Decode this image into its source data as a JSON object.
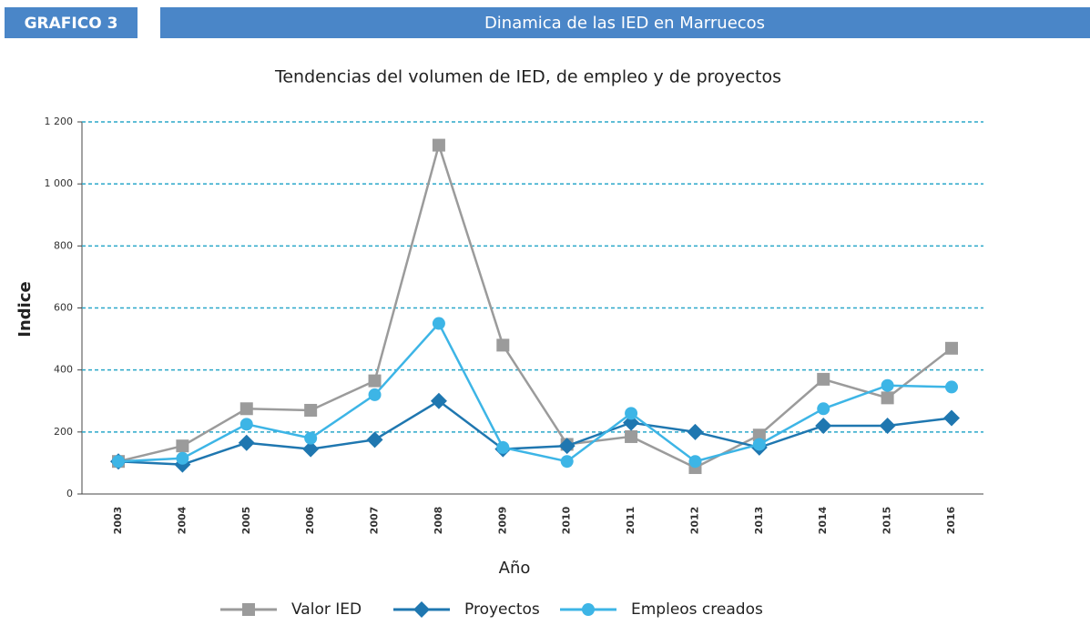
{
  "header": {
    "label": "GRAFICO 3",
    "title": "Dinamica de las IED en Marruecos"
  },
  "chart_data": {
    "type": "line",
    "title": "Tendencias del volumen de IED, de empleo y de proyectos",
    "xlabel": "Año",
    "ylabel": "Indice",
    "categories": [
      "2003",
      "2004",
      "2005",
      "2006",
      "2007",
      "2008",
      "2009",
      "2010",
      "2011",
      "2012",
      "2013",
      "2014",
      "2015",
      "2016"
    ],
    "series": [
      {
        "name": "Valor IED",
        "color": "#9b9b9b",
        "marker": "square",
        "values": [
          105,
          155,
          275,
          270,
          365,
          1125,
          480,
          160,
          185,
          85,
          190,
          370,
          310,
          470
        ]
      },
      {
        "name": "Proyectos",
        "color": "#1f77b0",
        "marker": "diamond",
        "values": [
          105,
          95,
          165,
          145,
          175,
          300,
          145,
          155,
          230,
          200,
          150,
          220,
          220,
          245
        ]
      },
      {
        "name": "Empleos creados",
        "color": "#3db5e6",
        "marker": "circle",
        "values": [
          105,
          115,
          225,
          180,
          320,
          550,
          150,
          105,
          260,
          105,
          160,
          275,
          350,
          345
        ]
      }
    ],
    "ylim": [
      0,
      1200
    ],
    "yticks": [
      0,
      200,
      400,
      600,
      800,
      {
        "value": 1000,
        "label": "1 000"
      },
      {
        "value": 1200,
        "label": "1 200"
      }
    ],
    "grid": true,
    "legend": "bottom"
  }
}
